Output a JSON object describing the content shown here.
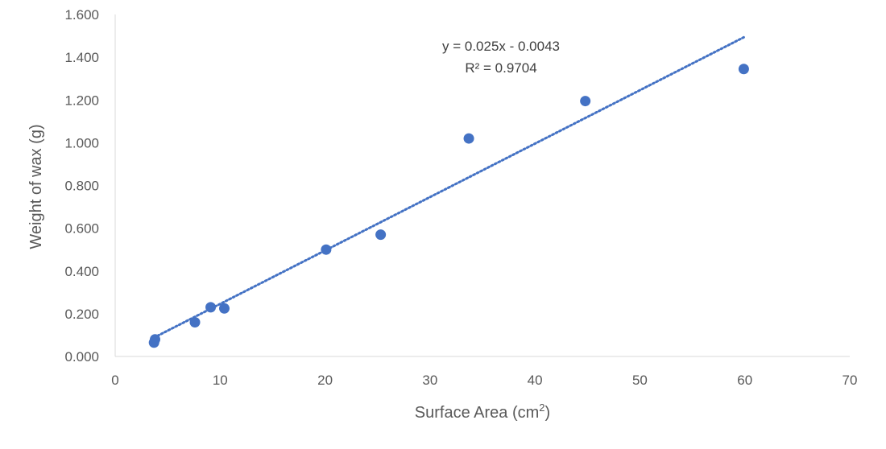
{
  "chart_data": {
    "type": "scatter",
    "title": "",
    "xlabel": "Surface Area (cm",
    "xlabel_sup": "2",
    "xlabel_tail": ")",
    "ylabel": "Weight of wax (g)",
    "xlim": [
      0,
      70
    ],
    "ylim": [
      0,
      1.6
    ],
    "x_ticks": [
      "0",
      "10",
      "20",
      "30",
      "40",
      "50",
      "60",
      "70"
    ],
    "y_ticks": [
      "0.000",
      "0.200",
      "0.400",
      "0.600",
      "0.800",
      "1.000",
      "1.200",
      "1.400",
      "1.600"
    ],
    "grid": false,
    "legend": "none",
    "series": [
      {
        "name": "",
        "color": "#4472C4",
        "points": [
          {
            "x": 3.7,
            "y": 0.065
          },
          {
            "x": 3.8,
            "y": 0.08
          },
          {
            "x": 7.6,
            "y": 0.16
          },
          {
            "x": 9.1,
            "y": 0.23
          },
          {
            "x": 10.4,
            "y": 0.225
          },
          {
            "x": 20.1,
            "y": 0.5
          },
          {
            "x": 25.3,
            "y": 0.57
          },
          {
            "x": 33.7,
            "y": 1.02
          },
          {
            "x": 44.8,
            "y": 1.195
          },
          {
            "x": 59.9,
            "y": 1.345
          }
        ]
      }
    ],
    "trendline": {
      "type": "linear",
      "slope": 0.025,
      "intercept": -0.0043,
      "x_range": [
        3.7,
        59.9
      ],
      "color": "#4472C4",
      "equation": "y = 0.025x - 0.0043",
      "r_squared": "R² = 0.9704"
    }
  }
}
